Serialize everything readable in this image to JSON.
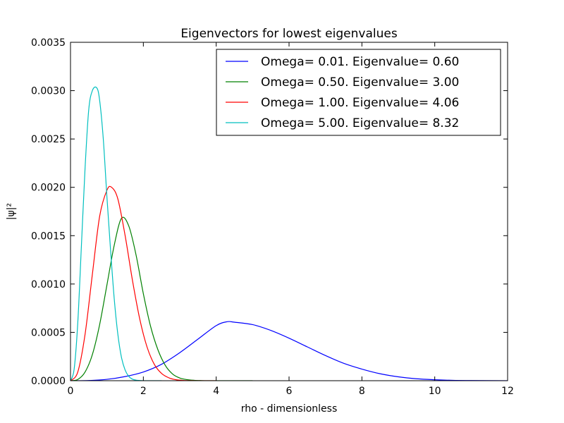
{
  "chart_data": {
    "type": "line",
    "title": "Eigenvectors for lowest eigenvalues",
    "xlabel": "rho - dimensionless",
    "ylabel": "|ψ|²",
    "xlim": [
      0,
      12
    ],
    "ylim": [
      0,
      0.0035
    ],
    "xticks": [
      0,
      2,
      4,
      6,
      8,
      10,
      12
    ],
    "xtick_labels": [
      "0",
      "2",
      "4",
      "6",
      "8",
      "10",
      "12"
    ],
    "yticks": [
      0,
      0.0005,
      0.001,
      0.0015,
      0.002,
      0.0025,
      0.003,
      0.0035
    ],
    "ytick_labels": [
      "0.0000",
      "0.0005",
      "0.0010",
      "0.0015",
      "0.0020",
      "0.0025",
      "0.0030",
      "0.0035"
    ],
    "grid": false,
    "legend_position": "top-right",
    "series": [
      {
        "name": "Omega= 0.01. Eigenvalue= 0.60",
        "color": "#0000ff",
        "x": [
          0,
          0.5,
          1,
          1.5,
          2,
          2.5,
          3,
          3.5,
          4,
          4.3,
          4.5,
          5,
          5.5,
          6,
          6.5,
          7,
          7.5,
          8,
          8.5,
          9,
          9.5,
          10,
          10.5,
          11,
          12
        ],
        "y": [
          0,
          2e-06,
          1.4e-05,
          4.3e-05,
          9e-05,
          0.00017,
          0.00029,
          0.00043,
          0.00057,
          0.00061,
          0.000605,
          0.00058,
          0.00052,
          0.00044,
          0.00035,
          0.00026,
          0.00018,
          0.00012,
          7.2e-05,
          4e-05,
          2e-05,
          1e-05,
          4e-06,
          2e-06,
          0
        ]
      },
      {
        "name": "Omega= 0.50. Eigenvalue= 3.00",
        "color": "#008000",
        "x": [
          0,
          0.2,
          0.4,
          0.6,
          0.8,
          1.0,
          1.2,
          1.4,
          1.6,
          1.8,
          2.0,
          2.2,
          2.4,
          2.6,
          2.8,
          3.0,
          3.2,
          3.4,
          3.6,
          3.8,
          4.0,
          4.5,
          5.0
        ],
        "y": [
          0,
          1.3e-05,
          9e-05,
          0.00027,
          0.00058,
          0.00099,
          0.0014,
          0.00168,
          0.0016,
          0.0013,
          0.0009,
          0.00056,
          0.00032,
          0.00016,
          7e-05,
          2.8e-05,
          1.1e-05,
          4e-06,
          1.5e-06,
          5e-07,
          0,
          0,
          0
        ]
      },
      {
        "name": "Omega= 1.00. Eigenvalue= 4.06",
        "color": "#ff0000",
        "x": [
          0,
          0.2,
          0.4,
          0.6,
          0.8,
          1.0,
          1.13,
          1.3,
          1.5,
          1.7,
          1.9,
          2.1,
          2.3,
          2.5,
          2.7,
          2.9,
          3.1,
          3.3,
          3.5,
          4.0
        ],
        "y": [
          0,
          9e-05,
          0.00048,
          0.0011,
          0.0017,
          0.00197,
          0.002,
          0.00188,
          0.0015,
          0.00104,
          0.00064,
          0.00035,
          0.00017,
          7.5e-05,
          3e-05,
          1e-05,
          3e-06,
          1e-06,
          0,
          0
        ]
      },
      {
        "name": "Omega= 5.00. Eigenvalue= 8.32",
        "color": "#00bfbf",
        "x": [
          0,
          0.1,
          0.2,
          0.3,
          0.4,
          0.5,
          0.6,
          0.72,
          0.8,
          0.9,
          1.0,
          1.1,
          1.2,
          1.3,
          1.4,
          1.5,
          1.6,
          1.7,
          1.8,
          1.9,
          2.0,
          2.2,
          2.5
        ],
        "y": [
          0,
          0.00012,
          0.0006,
          0.0014,
          0.0022,
          0.0028,
          0.003,
          0.00303,
          0.0029,
          0.0025,
          0.0019,
          0.00135,
          0.00085,
          0.00048,
          0.00024,
          0.00011,
          4.5e-05,
          1.6e-05,
          6e-06,
          2e-06,
          0,
          0,
          0
        ]
      }
    ]
  }
}
